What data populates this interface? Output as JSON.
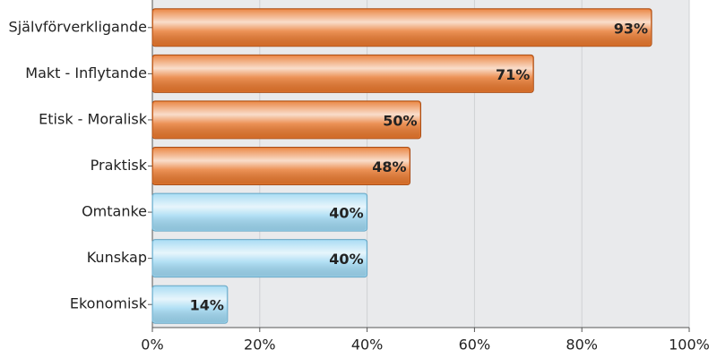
{
  "chart_data": {
    "type": "bar",
    "orientation": "horizontal",
    "categories": [
      "Självförverkligande",
      "Makt - Inflytande",
      "Etisk - Moralisk",
      "Praktisk",
      "Omtanke",
      "Kunskap",
      "Ekonomisk"
    ],
    "values": [
      93,
      71,
      50,
      48,
      40,
      40,
      14
    ],
    "value_labels": [
      "93%",
      "71%",
      "50%",
      "48%",
      "40%",
      "40%",
      "14%"
    ],
    "colors": [
      "#e8782e",
      "#e8782e",
      "#e8782e",
      "#e8782e",
      "#9fd8f2",
      "#9fd8f2",
      "#9fd8f2"
    ],
    "xlim": [
      0,
      100
    ],
    "xticks": [
      {
        "value": 0,
        "label": "0%"
      },
      {
        "value": 20,
        "label": "20%"
      },
      {
        "value": 40,
        "label": "40%"
      },
      {
        "value": 60,
        "label": "60%"
      },
      {
        "value": 80,
        "label": "80%"
      },
      {
        "value": 100,
        "label": "100%"
      }
    ],
    "grid": true
  }
}
